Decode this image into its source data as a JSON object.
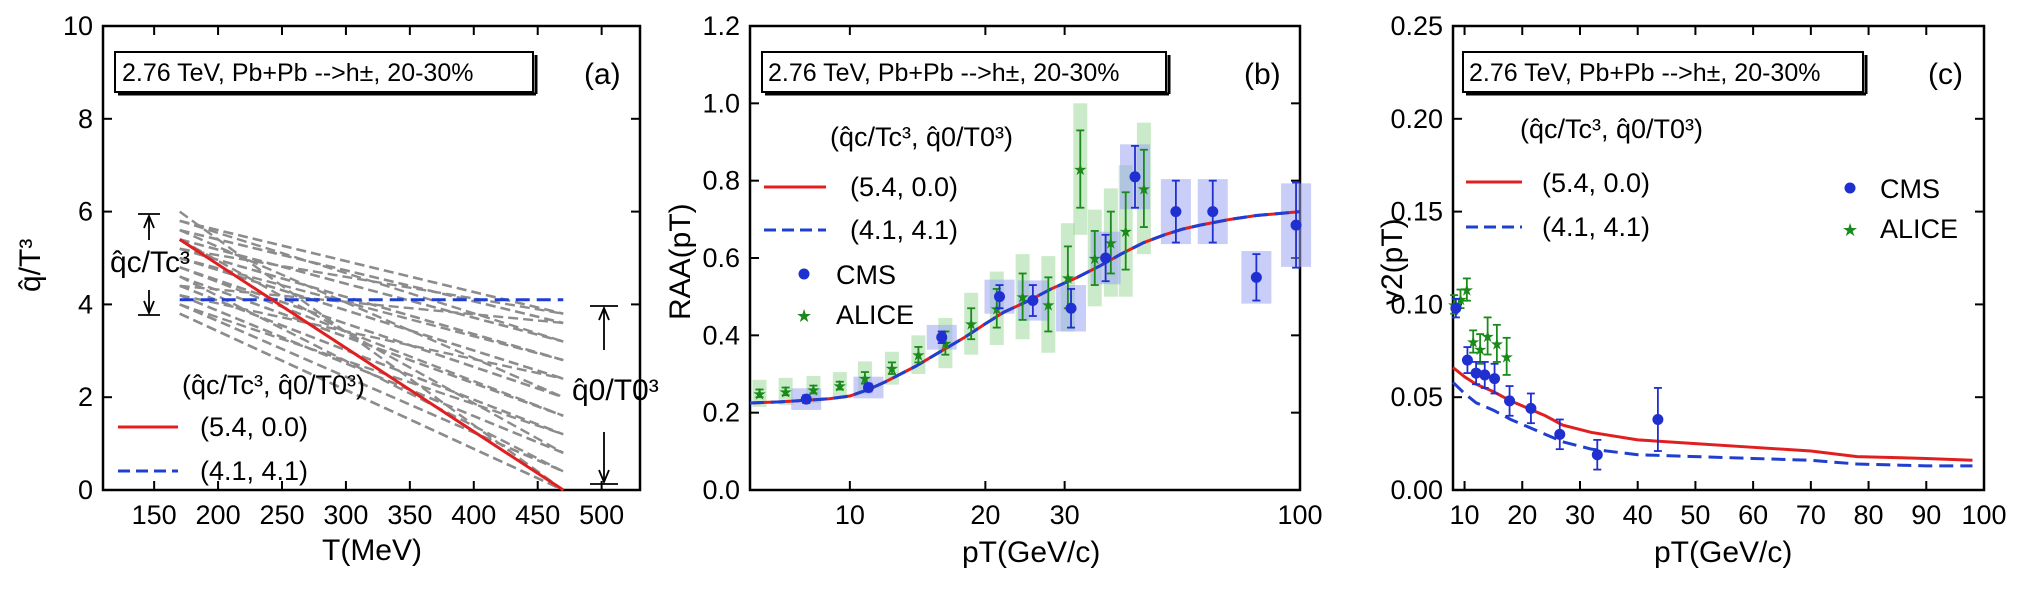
{
  "chart_data": [
    {
      "type": "line",
      "panel_label": "(a)",
      "title": "2.76 TeV, Pb+Pb -->h±, 20-30%",
      "xlabel": "T(MeV)",
      "ylabel": "q̂/T³",
      "xlim": [
        110,
        530
      ],
      "ylim": [
        0,
        10
      ],
      "xticks": [
        "150",
        "200",
        "250",
        "300",
        "350",
        "400",
        "450",
        "500"
      ],
      "yticks": [
        "0",
        "2",
        "4",
        "6",
        "8",
        "10"
      ],
      "legend_header": "(q̂c/Tc³, q̂0/T0³)",
      "annotations": {
        "qc_label": "q̂c/Tc³",
        "q0_label": "q̂0/T0³"
      },
      "series": [
        {
          "name": "(5.4, 0.0)",
          "style": "solid",
          "color": "#e02020",
          "x": [
            170,
            470
          ],
          "y": [
            5.4,
            0.0
          ]
        },
        {
          "name": "(4.1, 4.1)",
          "style": "dashed",
          "color": "#1f3fd0",
          "x": [
            170,
            470
          ],
          "y": [
            4.1,
            4.1
          ]
        }
      ],
      "scan_lines": {
        "description": "grey dashed parameter scan",
        "color": "#8c8c8c",
        "qc_values": [
          3.8,
          4.0,
          4.2,
          4.4,
          4.6,
          4.8,
          5.0,
          5.2,
          5.4,
          5.6,
          5.8,
          6.0
        ],
        "q0_values": [
          0.0,
          0.4,
          0.8,
          1.2,
          1.6,
          2.0,
          2.4,
          2.8,
          3.2,
          3.6,
          3.8
        ]
      }
    },
    {
      "type": "line",
      "panel_label": "(b)",
      "title": "2.76 TeV, Pb+Pb -->h±, 20-30%",
      "xlabel": "pT(GeV/c)",
      "ylabel": "RAA(pT)",
      "xscale": "log",
      "xlim": [
        6,
        100
      ],
      "ylim": [
        0,
        1.2
      ],
      "xticks": [
        "10",
        "20",
        "30",
        "100"
      ],
      "yticks": [
        "0.0",
        "0.2",
        "0.4",
        "0.6",
        "0.8",
        "1.0",
        "1.2"
      ],
      "legend_header": "(q̂c/Tc³, q̂0/T0³)",
      "series": [
        {
          "name": "(5.4, 0.0)",
          "style": "solid",
          "color": "#e02020",
          "x": [
            6,
            7,
            8,
            9,
            10,
            11,
            12,
            14,
            16,
            18,
            20,
            22,
            25,
            28,
            32,
            36,
            40,
            45,
            50,
            55,
            60,
            70,
            80,
            90,
            100
          ],
          "y": [
            0.225,
            0.228,
            0.232,
            0.236,
            0.243,
            0.26,
            0.28,
            0.32,
            0.36,
            0.395,
            0.43,
            0.46,
            0.49,
            0.52,
            0.55,
            0.58,
            0.61,
            0.64,
            0.66,
            0.675,
            0.685,
            0.7,
            0.71,
            0.715,
            0.72
          ]
        },
        {
          "name": "(4.1, 4.1)",
          "style": "dashed",
          "color": "#1f3fd0",
          "x": [
            6,
            7,
            8,
            9,
            10,
            11,
            12,
            14,
            16,
            18,
            20,
            22,
            25,
            28,
            32,
            36,
            40,
            45,
            50,
            55,
            60,
            70,
            80,
            90,
            100
          ],
          "y": [
            0.225,
            0.228,
            0.232,
            0.236,
            0.243,
            0.26,
            0.28,
            0.32,
            0.36,
            0.395,
            0.43,
            0.46,
            0.49,
            0.52,
            0.55,
            0.58,
            0.61,
            0.64,
            0.66,
            0.675,
            0.685,
            0.7,
            0.71,
            0.715,
            0.72
          ]
        },
        {
          "name": "CMS",
          "style": "marker-circle",
          "color": "#1f2fd0",
          "x": [
            8,
            11,
            16,
            21.5,
            25.5,
            31,
            37,
            43,
            53,
            64,
            80,
            98
          ],
          "y": [
            0.235,
            0.265,
            0.395,
            0.5,
            0.49,
            0.47,
            0.6,
            0.81,
            0.72,
            0.72,
            0.55,
            0.685
          ],
          "err": [
            0.01,
            0.01,
            0.015,
            0.03,
            0.04,
            0.05,
            0.06,
            0.08,
            0.08,
            0.08,
            0.06,
            0.11
          ]
        },
        {
          "name": "ALICE",
          "style": "marker-star",
          "color": "#1a8a1a",
          "x": [
            6.3,
            7.2,
            8.3,
            9.5,
            10.8,
            12.4,
            14.2,
            16.3,
            18.6,
            21.2,
            24.2,
            27.6,
            30.5,
            32.5,
            35,
            38,
            41,
            45
          ],
          "y": [
            0.25,
            0.255,
            0.26,
            0.27,
            0.29,
            0.315,
            0.35,
            0.38,
            0.43,
            0.47,
            0.5,
            0.48,
            0.55,
            0.83,
            0.6,
            0.64,
            0.67,
            0.78
          ],
          "err": [
            0.01,
            0.01,
            0.01,
            0.01,
            0.015,
            0.015,
            0.02,
            0.03,
            0.04,
            0.05,
            0.06,
            0.07,
            0.08,
            0.1,
            0.07,
            0.08,
            0.1,
            0.1
          ]
        }
      ]
    },
    {
      "type": "line",
      "panel_label": "(c)",
      "title": "2.76 TeV, Pb+Pb -->h±, 20-30%",
      "xlabel": "pT(GeV/c)",
      "ylabel": "v2(pT)",
      "xlim": [
        8,
        100
      ],
      "ylim": [
        0,
        0.25
      ],
      "xticks": [
        "10",
        "20",
        "30",
        "40",
        "50",
        "60",
        "70",
        "80",
        "90",
        "100"
      ],
      "yticks": [
        "0.00",
        "0.05",
        "0.10",
        "0.15",
        "0.20",
        "0.25"
      ],
      "legend_header": "(q̂c/Tc³, q̂0/T0³)",
      "series": [
        {
          "name": "(5.4, 0.0)",
          "style": "solid",
          "color": "#e02020",
          "x": [
            8,
            10,
            12,
            15,
            18,
            21,
            24,
            27,
            32,
            40,
            50,
            60,
            70,
            78,
            90,
            98
          ],
          "y": [
            0.066,
            0.061,
            0.057,
            0.053,
            0.048,
            0.044,
            0.04,
            0.035,
            0.031,
            0.027,
            0.025,
            0.023,
            0.021,
            0.018,
            0.017,
            0.016
          ]
        },
        {
          "name": "(4.1, 4.1)",
          "style": "dashed",
          "color": "#1f3fd0",
          "x": [
            8,
            10,
            12,
            15,
            18,
            21,
            24,
            27,
            32,
            40,
            50,
            60,
            70,
            78,
            90,
            98
          ],
          "y": [
            0.058,
            0.052,
            0.047,
            0.043,
            0.038,
            0.034,
            0.03,
            0.026,
            0.022,
            0.019,
            0.018,
            0.017,
            0.016,
            0.014,
            0.013,
            0.013
          ]
        },
        {
          "name": "CMS",
          "style": "marker-circle",
          "color": "#1f2fd0",
          "x": [
            8.5,
            10.5,
            12,
            13.5,
            15.2,
            17.8,
            21.5,
            26.5,
            33,
            43.5
          ],
          "y": [
            0.098,
            0.07,
            0.063,
            0.062,
            0.06,
            0.048,
            0.044,
            0.03,
            0.019,
            0.038
          ],
          "err": [
            0.005,
            0.007,
            0.006,
            0.007,
            0.008,
            0.008,
            0.008,
            0.008,
            0.008,
            0.017
          ]
        },
        {
          "name": "ALICE",
          "style": "marker-star",
          "color": "#1a8a1a",
          "x": [
            8.2,
            9.3,
            10.4,
            11.5,
            12.7,
            14,
            15.6,
            17.3
          ],
          "y": [
            0.1,
            0.103,
            0.108,
            0.08,
            0.076,
            0.083,
            0.079,
            0.072
          ],
          "err": [
            0.005,
            0.005,
            0.006,
            0.006,
            0.008,
            0.01,
            0.01,
            0.01
          ]
        }
      ]
    }
  ]
}
